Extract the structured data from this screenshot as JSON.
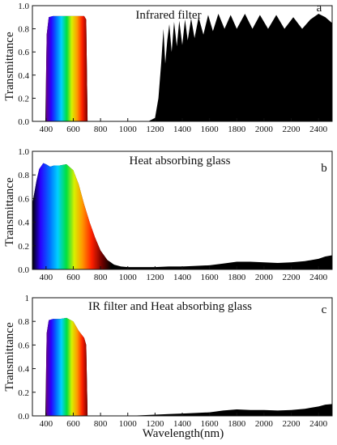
{
  "chart_data": [
    {
      "type": "area",
      "panel_letter": "a",
      "title": "Infrared filter",
      "xlabel": "",
      "ylabel": "Transmittance",
      "xlim": [
        300,
        2500
      ],
      "ylim": [
        0,
        1.0
      ],
      "xticks": [
        400,
        600,
        800,
        1000,
        1200,
        1400,
        1600,
        1800,
        2000,
        2200,
        2400
      ],
      "yticks": [
        0.0,
        0.2,
        0.4,
        0.6,
        0.8,
        1.0
      ],
      "ytick_labels": [
        "0.0",
        "0.2",
        "0.4",
        "0.6",
        "0.8",
        "1.0"
      ],
      "fill_color": "#000000",
      "visible_spectrum_gradient": true,
      "x": [
        300,
        395,
        405,
        420,
        450,
        500,
        550,
        600,
        650,
        680,
        695,
        705,
        1050,
        1150,
        1200,
        1225,
        1245,
        1262,
        1275,
        1290,
        1305,
        1322,
        1340,
        1360,
        1378,
        1400,
        1420,
        1440,
        1465,
        1490,
        1520,
        1555,
        1590,
        1625,
        1665,
        1710,
        1755,
        1800,
        1860,
        1915,
        1970,
        2030,
        2090,
        2150,
        2215,
        2280,
        2340,
        2400,
        2450,
        2500
      ],
      "y": [
        0.0,
        0.0,
        0.75,
        0.9,
        0.91,
        0.91,
        0.91,
        0.91,
        0.91,
        0.91,
        0.88,
        0.0,
        0.0,
        0.0,
        0.03,
        0.2,
        0.5,
        0.8,
        0.5,
        0.7,
        0.84,
        0.6,
        0.86,
        0.65,
        0.87,
        0.66,
        0.88,
        0.7,
        0.89,
        0.72,
        0.9,
        0.75,
        0.92,
        0.78,
        0.93,
        0.8,
        0.92,
        0.8,
        0.93,
        0.8,
        0.92,
        0.8,
        0.92,
        0.8,
        0.9,
        0.8,
        0.88,
        0.93,
        0.9,
        0.85
      ]
    },
    {
      "type": "area",
      "panel_letter": "b",
      "title": "Heat absorbing glass",
      "xlabel": "",
      "ylabel": "Transmittance",
      "xlim": [
        300,
        2500
      ],
      "ylim": [
        0,
        1.0
      ],
      "xticks": [
        400,
        600,
        800,
        1000,
        1200,
        1400,
        1600,
        1800,
        2000,
        2200,
        2400
      ],
      "yticks": [
        0.0,
        0.2,
        0.4,
        0.6,
        0.8,
        1.0
      ],
      "ytick_labels": [
        "0.0",
        "0.2",
        "0.4",
        "0.6",
        "0.8",
        "1.0"
      ],
      "fill_color": "#000000",
      "visible_spectrum_gradient": true,
      "x": [
        300,
        310,
        330,
        350,
        380,
        400,
        430,
        460,
        500,
        550,
        600,
        640,
        680,
        720,
        760,
        800,
        850,
        900,
        950,
        1000,
        1100,
        1200,
        1300,
        1400,
        1500,
        1600,
        1700,
        1800,
        1900,
        2000,
        2100,
        2200,
        2300,
        2400,
        2450,
        2500
      ],
      "y": [
        0.55,
        0.62,
        0.75,
        0.85,
        0.9,
        0.89,
        0.87,
        0.88,
        0.88,
        0.89,
        0.84,
        0.72,
        0.55,
        0.4,
        0.27,
        0.16,
        0.08,
        0.04,
        0.025,
        0.02,
        0.02,
        0.02,
        0.025,
        0.025,
        0.03,
        0.035,
        0.05,
        0.065,
        0.065,
        0.06,
        0.055,
        0.06,
        0.07,
        0.09,
        0.11,
        0.12
      ]
    },
    {
      "type": "area",
      "panel_letter": "c",
      "title": "IR filter and Heat absorbing glass",
      "xlabel": "Wavelength(nm)",
      "ylabel": "Transmittance",
      "xlim": [
        300,
        2500
      ],
      "ylim": [
        0,
        1.0
      ],
      "xticks": [
        400,
        600,
        800,
        1000,
        1200,
        1400,
        1600,
        1800,
        2000,
        2200,
        2400
      ],
      "yticks": [
        0.0,
        0.2,
        0.4,
        0.6,
        0.8,
        1.0
      ],
      "ytick_labels": [
        "0.0",
        "0.2",
        "0.4",
        "0.6",
        "0.8",
        "1"
      ],
      "fill_color": "#000000",
      "visible_spectrum_gradient": true,
      "x": [
        300,
        395,
        405,
        420,
        450,
        500,
        550,
        600,
        640,
        680,
        695,
        705,
        1000,
        1200,
        1300,
        1400,
        1500,
        1600,
        1700,
        1800,
        1900,
        2000,
        2100,
        2200,
        2300,
        2400,
        2450,
        2500
      ],
      "y": [
        0.0,
        0.0,
        0.7,
        0.81,
        0.82,
        0.82,
        0.83,
        0.8,
        0.72,
        0.66,
        0.6,
        0.0,
        0.0,
        0.01,
        0.015,
        0.02,
        0.025,
        0.03,
        0.045,
        0.055,
        0.05,
        0.05,
        0.045,
        0.05,
        0.06,
        0.08,
        0.095,
        0.1
      ]
    }
  ]
}
